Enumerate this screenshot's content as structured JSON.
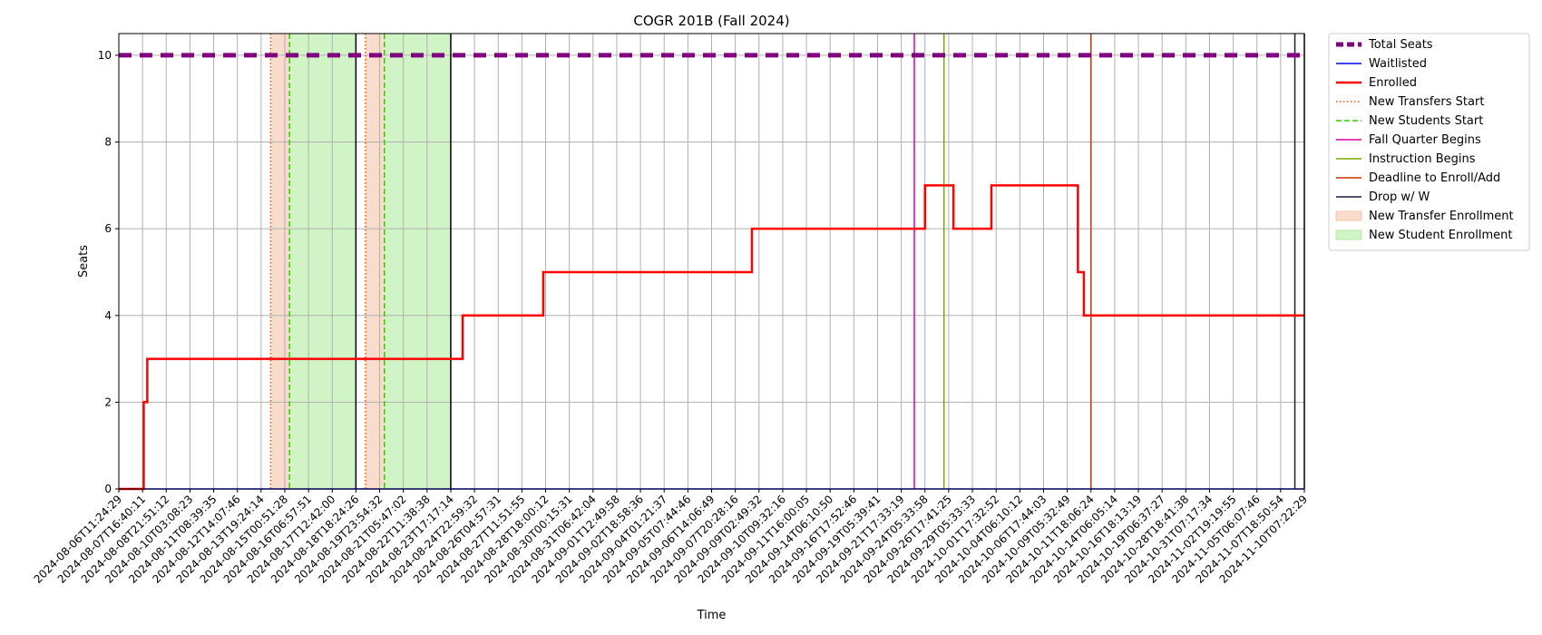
{
  "chart_data": {
    "type": "line",
    "title": "COGR 201B (Fall 2024)",
    "xlabel": "Time",
    "ylabel": "Seats",
    "ylim": [
      0,
      10.5
    ],
    "yticks": [
      0,
      2,
      4,
      6,
      8,
      10
    ],
    "x_tick_labels": [
      "2024-08-06T11:24:29",
      "2024-08-07T16:40:11",
      "2024-08-08T21:51:12",
      "2024-08-10T03:08:23",
      "2024-08-11T08:39:35",
      "2024-08-12T14:07:46",
      "2024-08-13T19:24:14",
      "2024-08-15T00:51:28",
      "2024-08-16T06:57:51",
      "2024-08-17T12:42:00",
      "2024-08-18T18:24:26",
      "2024-08-19T23:54:32",
      "2024-08-21T05:47:02",
      "2024-08-22T11:38:38",
      "2024-08-23T17:17:14",
      "2024-08-24T22:59:32",
      "2024-08-26T04:57:31",
      "2024-08-27T11:51:55",
      "2024-08-28T18:00:12",
      "2024-08-30T00:15:31",
      "2024-08-31T06:42:04",
      "2024-09-01T12:49:58",
      "2024-09-02T18:58:36",
      "2024-09-04T01:21:37",
      "2024-09-05T07:44:46",
      "2024-09-06T14:06:49",
      "2024-09-07T20:28:16",
      "2024-09-09T02:49:32",
      "2024-09-10T09:32:16",
      "2024-09-11T16:00:05",
      "2024-09-14T06:10:50",
      "2024-09-16T17:52:46",
      "2024-09-19T05:39:41",
      "2024-09-21T17:33:19",
      "2024-09-24T05:33:58",
      "2024-09-26T17:41:25",
      "2024-09-29T05:33:33",
      "2024-10-01T17:32:52",
      "2024-10-04T06:10:12",
      "2024-10-06T17:44:03",
      "2024-10-09T05:32:49",
      "2024-10-11T18:06:24",
      "2024-10-14T06:05:14",
      "2024-10-16T18:13:19",
      "2024-10-19T06:37:27",
      "2024-10-28T18:41:38",
      "2024-10-31T07:17:34",
      "2024-11-02T19:19:55",
      "2024-11-05T06:07:46",
      "2024-11-07T18:50:54",
      "2024-11-10T07:22:29"
    ],
    "series": [
      {
        "name": "Total Seats",
        "color": "#800080",
        "style": "dashed-thick",
        "points": [
          [
            0,
            10
          ],
          [
            50,
            10
          ]
        ]
      },
      {
        "name": "Waitlisted",
        "color": "#0000ff",
        "style": "solid",
        "points": [
          [
            0,
            0
          ],
          [
            50,
            0
          ]
        ]
      },
      {
        "name": "Enrolled",
        "color": "#ff0000",
        "style": "step",
        "points": [
          [
            0,
            0
          ],
          [
            1.05,
            0
          ],
          [
            1.05,
            2
          ],
          [
            1.2,
            2
          ],
          [
            1.2,
            3
          ],
          [
            14.5,
            3
          ],
          [
            14.5,
            4
          ],
          [
            17.9,
            4
          ],
          [
            17.9,
            5
          ],
          [
            26.7,
            5
          ],
          [
            26.7,
            6
          ],
          [
            34.0,
            6
          ],
          [
            34.0,
            7
          ],
          [
            35.2,
            7
          ],
          [
            35.2,
            6
          ],
          [
            36.8,
            6
          ],
          [
            36.8,
            7
          ],
          [
            40.45,
            7
          ],
          [
            40.45,
            5
          ],
          [
            40.7,
            5
          ],
          [
            40.7,
            4
          ],
          [
            50,
            4
          ]
        ]
      }
    ],
    "vertical_lines": [
      {
        "name": "New Transfers Start",
        "color": "#ff5500",
        "style": "dotted",
        "x": [
          6.4,
          10.4
        ]
      },
      {
        "name": "New Students Start",
        "color": "#33cc00",
        "style": "dashed",
        "x": [
          7.2,
          11.2
        ]
      },
      {
        "name": "Fall Quarter Begins",
        "color": "#dd00aa",
        "style": "solid",
        "x": [
          33.55
        ]
      },
      {
        "name": "Instruction Begins",
        "color": "#77aa00",
        "style": "solid",
        "x": [
          34.8
        ]
      },
      {
        "name": "Deadline to Enroll/Add",
        "color": "#cc3300",
        "style": "solid",
        "x": [
          41.0
        ]
      },
      {
        "name": "Drop w/ W",
        "color": "#1a1a3a",
        "style": "solid",
        "x": [
          49.6
        ]
      }
    ],
    "black_boundary_lines_x": [
      10.0,
      14.0,
      50.0
    ],
    "spans": [
      {
        "name": "New Transfer Enrollment",
        "color": "#f5c4aa",
        "ranges": [
          [
            6.4,
            7.2
          ],
          [
            10.4,
            11.2
          ]
        ]
      },
      {
        "name": "New Student Enrollment",
        "color": "#b3eca0",
        "ranges": [
          [
            7.2,
            10.0
          ],
          [
            11.2,
            14.0
          ]
        ]
      }
    ],
    "grid": true,
    "legend_position": "outside-right-top",
    "legend": [
      {
        "label": "Total Seats",
        "kind": "line",
        "color": "#800080",
        "style": "dashed-thick"
      },
      {
        "label": "Waitlisted",
        "kind": "line",
        "color": "#0000ff",
        "style": "solid"
      },
      {
        "label": "Enrolled",
        "kind": "line",
        "color": "#ff0000",
        "style": "solid-thick"
      },
      {
        "label": "New Transfers Start",
        "kind": "line",
        "color": "#ff5500",
        "style": "dotted"
      },
      {
        "label": "New Students Start",
        "kind": "line",
        "color": "#33cc00",
        "style": "dashed"
      },
      {
        "label": "Fall Quarter Begins",
        "kind": "line",
        "color": "#dd00aa",
        "style": "solid"
      },
      {
        "label": "Instruction Begins",
        "kind": "line",
        "color": "#77aa00",
        "style": "solid"
      },
      {
        "label": "Deadline to Enroll/Add",
        "kind": "line",
        "color": "#cc3300",
        "style": "solid"
      },
      {
        "label": "Drop w/ W",
        "kind": "line",
        "color": "#1a1a3a",
        "style": "solid"
      },
      {
        "label": "New Transfer Enrollment",
        "kind": "patch",
        "color": "#f5c4aa"
      },
      {
        "label": "New Student Enrollment",
        "kind": "patch",
        "color": "#b3eca0"
      }
    ]
  }
}
